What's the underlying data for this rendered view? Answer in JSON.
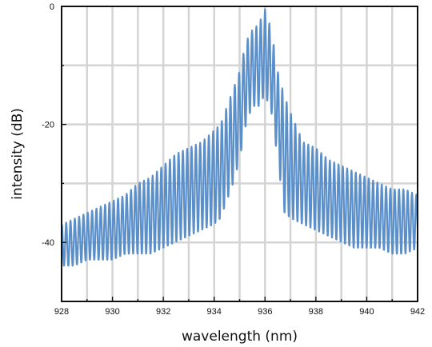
{
  "chart_data": {
    "type": "line",
    "title": "",
    "xlabel": "wavelength (nm)",
    "ylabel": "intensity (dB)",
    "xlim": [
      928,
      942
    ],
    "ylim": [
      -50,
      0
    ],
    "x_ticks": [
      928,
      930,
      932,
      934,
      936,
      938,
      940,
      942
    ],
    "x_tick_labels": [
      "928",
      "930",
      "932",
      "934",
      "936",
      "938",
      "940",
      "942"
    ],
    "y_ticks": [
      0,
      -20,
      -40
    ],
    "y_tick_labels": [
      "0",
      "-20",
      "-40"
    ],
    "grid": true,
    "legend": "none",
    "series_color": "#5b8fc9",
    "series": [
      {
        "x": [
          928.0,
          928.5,
          929.0,
          929.5,
          930.0,
          930.5,
          931.0,
          931.5,
          932.0,
          932.5,
          933.0,
          933.5,
          934.0,
          934.25,
          934.5,
          934.75,
          935.0,
          935.25,
          935.5,
          935.75,
          936.0,
          936.25,
          936.5,
          936.75,
          937.0,
          937.5,
          938.0,
          938.5,
          939.0,
          939.5,
          940.0,
          940.5,
          941.0,
          941.5,
          942.0
        ],
        "upper": [
          -37,
          -36,
          -35,
          -34,
          -33,
          -32,
          -30,
          -29,
          -27,
          -25,
          -24,
          -23,
          -21,
          -20,
          -17,
          -14,
          -11,
          -6,
          -4,
          -3,
          -0.5,
          -4,
          -11,
          -15,
          -18,
          -23,
          -24,
          -26,
          -27,
          -28,
          -29,
          -30,
          -31,
          -31,
          -32
        ],
        "lower": [
          -44,
          -44,
          -43,
          -43,
          -43,
          -42,
          -42,
          -42,
          -41,
          -40,
          -39,
          -38,
          -37,
          -36,
          -33,
          -30,
          -26,
          -20,
          -17,
          -17,
          -15,
          -18,
          -26,
          -35,
          -36,
          -37,
          -38,
          -39,
          -40,
          -41,
          -41,
          -41,
          -42,
          -42,
          -41
        ]
      }
    ]
  }
}
